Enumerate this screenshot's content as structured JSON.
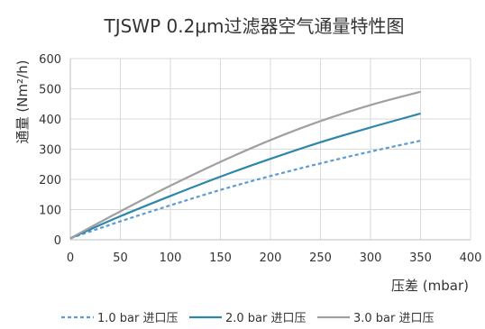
{
  "chart_data": {
    "type": "line",
    "title": "TJSWP 0.2μm过滤器空气通量特性图",
    "xlabel": "压差 (mbar)",
    "ylabel": "通量 (Nm²/h)",
    "xlim": [
      0,
      400
    ],
    "ylim": [
      0,
      600
    ],
    "xticks": [
      "0",
      "50",
      "100",
      "150",
      "200",
      "250",
      "300",
      "350",
      "400"
    ],
    "yticks": [
      "0",
      "100",
      "200",
      "300",
      "400",
      "500",
      "600"
    ],
    "grid": true,
    "legend_position": "bottom",
    "x": [
      0,
      50,
      100,
      150,
      200,
      250,
      300,
      350
    ],
    "series": [
      {
        "name": "1.0 bar 进口压",
        "color": "#5b9bd5",
        "dash": "dotted",
        "values": [
          5,
          61,
          114,
          165,
          211,
          253,
          292,
          328
        ]
      },
      {
        "name": "2.0 bar 进口压",
        "color": "#2e86ab",
        "dash": "solid",
        "values": [
          5,
          78,
          145,
          209,
          268,
          323,
          372,
          418
        ]
      },
      {
        "name": "3.0 bar 进口压",
        "color": "#a0a0a0",
        "dash": "solid",
        "values": [
          5,
          94,
          179,
          258,
          330,
          393,
          446,
          490
        ]
      }
    ]
  }
}
